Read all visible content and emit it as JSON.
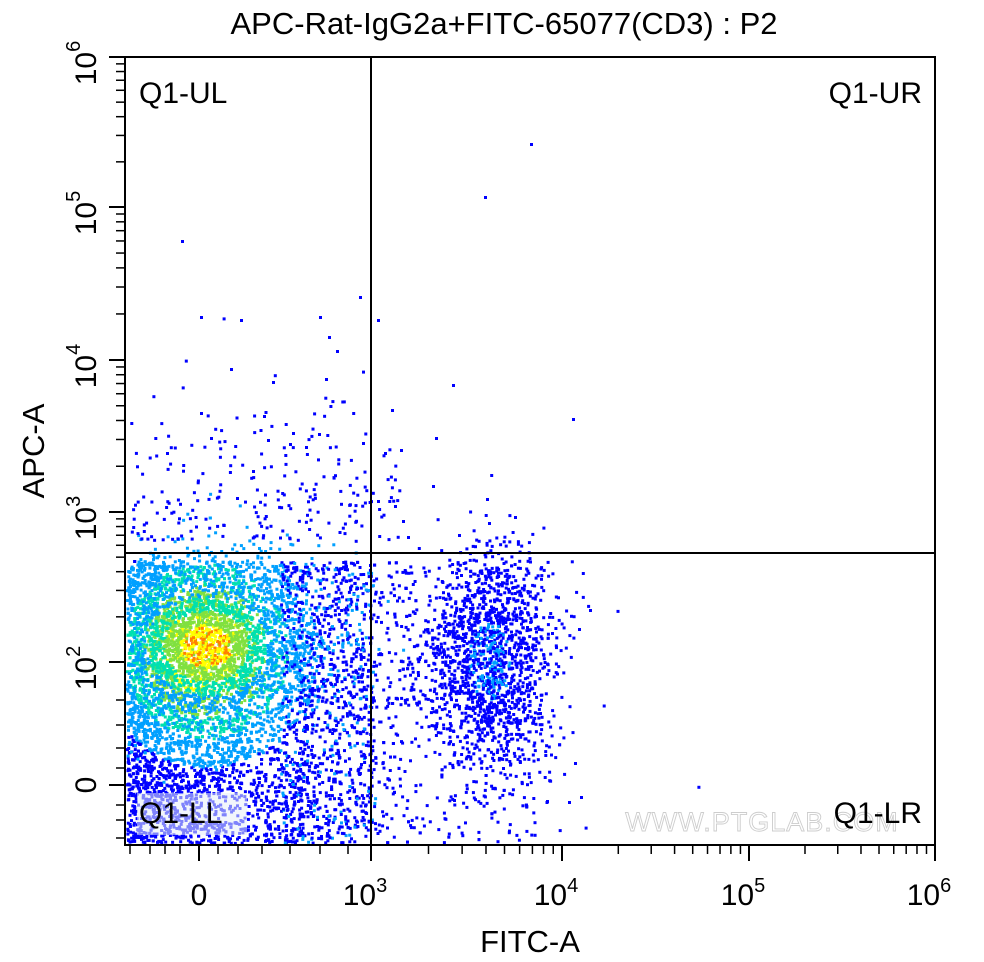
{
  "chart_data": {
    "type": "scatter",
    "title": "APC-Rat-IgG2a+FITC-65077(CD3) : P2",
    "xlabel": "FITC-A",
    "ylabel": "APC-A",
    "scale": "biexponential (logicle)",
    "x_ticks": [
      {
        "base": "0",
        "exp": ""
      },
      {
        "base": "10",
        "exp": "3"
      },
      {
        "base": "10",
        "exp": "4"
      },
      {
        "base": "10",
        "exp": "5"
      },
      {
        "base": "10",
        "exp": "6"
      }
    ],
    "y_ticks": [
      {
        "base": "0",
        "exp": ""
      },
      {
        "base": "10",
        "exp": "2"
      },
      {
        "base": "10",
        "exp": "3"
      },
      {
        "base": "10",
        "exp": "4"
      },
      {
        "base": "10",
        "exp": "5"
      },
      {
        "base": "10",
        "exp": "6"
      }
    ],
    "quadrant_gate": {
      "x": 1000,
      "y": 700
    },
    "quadrants": [
      "Q1-UL",
      "Q1-UR",
      "Q1-LL",
      "Q1-LR"
    ],
    "populations": [
      {
        "name": "",
        "center_x": 0,
        "center_y": 120,
        "note": "dense population, lower-left quadrant"
      },
      {
        "name": "",
        "center_x": 4500,
        "center_y": 100,
        "note": "CD3+ population, lower-right quadrant"
      }
    ],
    "colormap": [
      "#0000ff",
      "#00a0ff",
      "#00e0b0",
      "#80e040",
      "#ffff00",
      "#ff8000"
    ],
    "grid": false,
    "legend": "none"
  },
  "watermark": "WWW.PTGLAB.COM"
}
